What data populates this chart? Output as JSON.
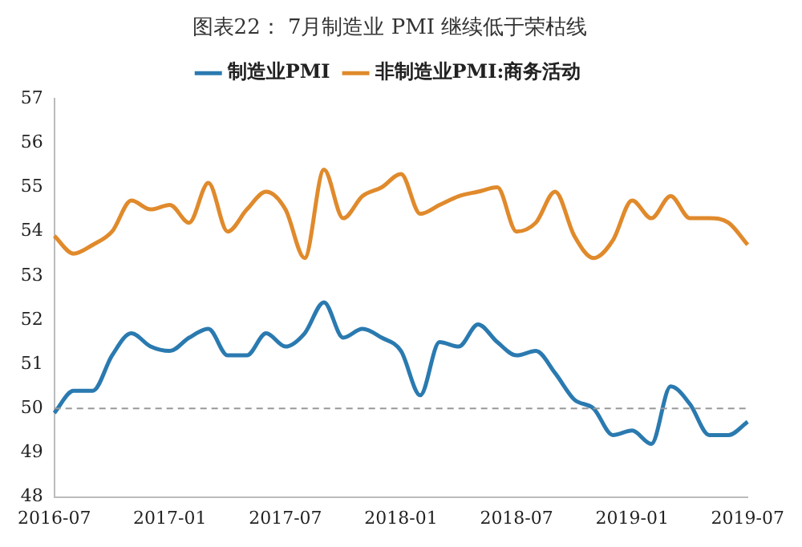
{
  "chart_data": {
    "type": "line",
    "title": "图表22： 7月制造业 PMI 继续低于荣枯线",
    "categories": [
      "2016-07",
      null,
      null,
      null,
      null,
      null,
      "2017-01",
      null,
      null,
      null,
      null,
      null,
      "2017-07",
      null,
      null,
      null,
      null,
      null,
      "2018-01",
      null,
      null,
      null,
      null,
      null,
      "2018-07",
      null,
      null,
      null,
      null,
      null,
      "2019-01",
      null,
      null,
      null,
      null,
      null,
      "2019-07"
    ],
    "series": [
      {
        "name": "制造业PMI",
        "color": "#2a7ab0",
        "values": [
          49.9,
          50.4,
          50.4,
          51.2,
          51.7,
          51.4,
          51.3,
          51.6,
          51.8,
          51.2,
          51.2,
          51.7,
          51.4,
          51.7,
          52.4,
          51.6,
          51.8,
          51.6,
          51.3,
          50.3,
          51.5,
          51.4,
          51.9,
          51.5,
          51.2,
          51.3,
          50.8,
          50.2,
          50.0,
          49.4,
          49.5,
          49.2,
          50.5,
          50.1,
          49.4,
          49.4,
          49.7
        ]
      },
      {
        "name": "非制造业PMI:商务活动",
        "color": "#e08a2c",
        "values": [
          53.9,
          53.5,
          53.7,
          54.0,
          54.7,
          54.5,
          54.6,
          54.2,
          55.1,
          54.0,
          54.5,
          54.9,
          54.5,
          53.4,
          55.4,
          54.3,
          54.8,
          55.0,
          55.3,
          54.4,
          54.6,
          54.8,
          54.9,
          55.0,
          54.0,
          54.2,
          54.9,
          53.9,
          53.4,
          53.8,
          54.7,
          54.3,
          54.8,
          54.3,
          54.3,
          54.2,
          53.7
        ]
      }
    ],
    "ylim": [
      48,
      57
    ],
    "yticks": [
      48,
      49,
      50,
      51,
      52,
      53,
      54,
      55,
      56,
      57
    ],
    "ref_lines": [
      {
        "axis": "y",
        "value": 50,
        "color": "#999999",
        "line_style": "dashed"
      }
    ],
    "grid": false,
    "legend": "top",
    "marker": "none",
    "line_style": "solid"
  }
}
